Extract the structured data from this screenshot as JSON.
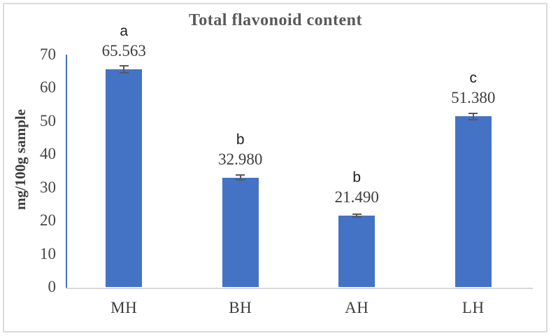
{
  "figure": {
    "type": "excel-style-bar-chart"
  },
  "chart_data": {
    "type": "bar",
    "title": "Total flavonoid content",
    "xlabel": "",
    "ylabel": "mg/100g sample",
    "categories": [
      "MH",
      "BH",
      "AH",
      "LH"
    ],
    "values": [
      65.563,
      32.98,
      21.49,
      51.38
    ],
    "value_label_decimals": 3,
    "significance_letters": [
      "a",
      "b",
      "b",
      "c"
    ],
    "error_bars": [
      1.0,
      0.8,
      0.5,
      1.0
    ],
    "ylim": [
      0,
      70
    ],
    "yticks": [
      0,
      10,
      20,
      30,
      40,
      50,
      60,
      70
    ],
    "grid": false,
    "legend": false,
    "colors": {
      "bar": "#4472C4",
      "y_axis_line": "#4472C4",
      "x_axis_line": "#d9d9d9",
      "error_bar": "#595959",
      "title": "#595959",
      "labels": "#3d3d3d",
      "letters": "#1f1f1f",
      "frame_border": "#dadada"
    }
  }
}
